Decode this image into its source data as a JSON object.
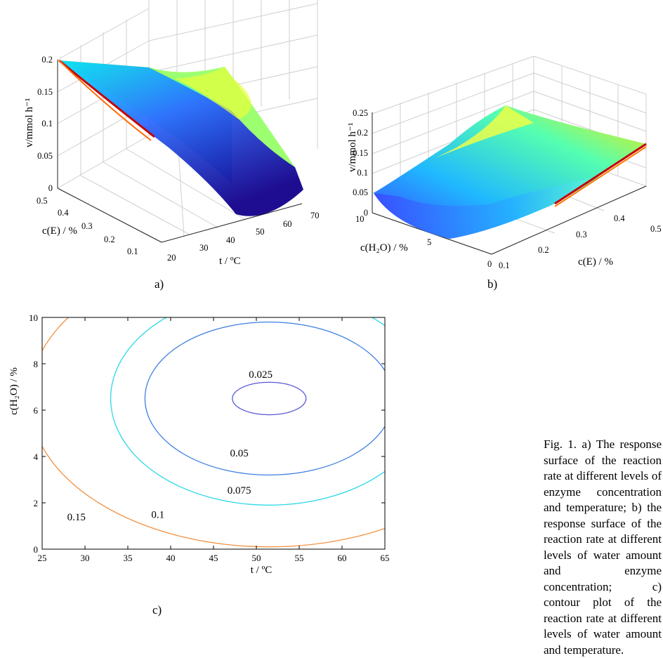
{
  "caption": "Fig. 1. a) The response surface of the reaction rate at different levels of enzyme concentration and temperature; b) the response surface of the reaction rate at different levels of water amount and enzyme concentration; c) contour plot of the reaction rate at different levels of water amount and temperature.",
  "chart_data": [
    {
      "panel_label": "a)",
      "type": "surface",
      "zlabel": "v/mmol h⁻¹",
      "ylabel": "c(E) / %",
      "xlabel": "t / ºC",
      "zlim": [
        0,
        0.2
      ],
      "ylim": [
        0.1,
        0.5
      ],
      "xlim": [
        20,
        70
      ],
      "z_ticks": [
        "0",
        "0.05",
        "0.1",
        "0.15",
        "0.2"
      ],
      "y_ticks": [
        "0.1",
        "0.2",
        "0.3",
        "0.4",
        "0.5"
      ],
      "x_ticks": [
        "20",
        "30",
        "40",
        "50",
        "60",
        "70"
      ],
      "grid": true,
      "colormap": "jet",
      "surface_corners": [
        {
          "t": 20,
          "cE": 0.5,
          "v": 0.2
        },
        {
          "t": 70,
          "cE": 0.5,
          "v": 0.175
        },
        {
          "t": 20,
          "cE": 0.1,
          "v": 0.07
        },
        {
          "t": 70,
          "cE": 0.1,
          "v": 0.045
        }
      ],
      "surface_minimum": {
        "t": 50,
        "v": 0.015
      }
    },
    {
      "panel_label": "b)",
      "type": "surface",
      "zlabel": "v/mmol h⁻¹",
      "xlabel": "c(E) / %",
      "ylabel": "c(H₂O) / %",
      "zlim": [
        0,
        0.25
      ],
      "xlim": [
        0.1,
        0.5
      ],
      "ylim": [
        0,
        10
      ],
      "z_ticks": [
        "0",
        "0.05",
        "0.1",
        "0.15",
        "0.2",
        "0.25"
      ],
      "x_ticks": [
        "0.1",
        "0.2",
        "0.3",
        "0.4",
        "0.5"
      ],
      "y_ticks": [
        "0",
        "5",
        "10"
      ],
      "grid": true,
      "colormap": "jet",
      "surface_corners": [
        {
          "cE": 0.1,
          "w": 10,
          "v": 0.045
        },
        {
          "cE": 0.1,
          "w": 0,
          "v": 0.06
        },
        {
          "cE": 0.5,
          "w": 10,
          "v": 0.2
        },
        {
          "cE": 0.5,
          "w": 0,
          "v": 0.21
        }
      ]
    },
    {
      "panel_label": "c)",
      "type": "contour",
      "xlabel": "t / ºC",
      "ylabel": "c(H₂O) / %",
      "xlim": [
        25,
        65
      ],
      "ylim": [
        0,
        10
      ],
      "x_ticks": [
        25,
        30,
        35,
        40,
        45,
        50,
        55,
        60,
        65
      ],
      "y_ticks": [
        0,
        2,
        4,
        6,
        8,
        10
      ],
      "center": {
        "t": 51.5,
        "w": 6.5
      },
      "levels": [
        {
          "label": "0.025",
          "rx": 4.3,
          "ry": 0.7,
          "color": "#5858d8",
          "label_at": [
            50.5,
            7.4
          ]
        },
        {
          "label": "0.05",
          "rx": 14.5,
          "ry": 3.3,
          "color": "#3d7ee0",
          "label_at": [
            48.0,
            4.0
          ]
        },
        {
          "label": "0.075",
          "rx": 18.5,
          "ry": 4.6,
          "color": "#2dd8e8",
          "label_at": [
            48.0,
            2.4
          ]
        },
        {
          "label": "0.1",
          "rx": 28.0,
          "ry": 6.4,
          "color": "#f29040",
          "label_at": [
            38.5,
            1.35
          ]
        },
        {
          "label": "0.15",
          "rx": 40.5,
          "ry": 8.7,
          "color": "#8a2458",
          "label_at": [
            29.0,
            1.25
          ]
        }
      ]
    }
  ]
}
